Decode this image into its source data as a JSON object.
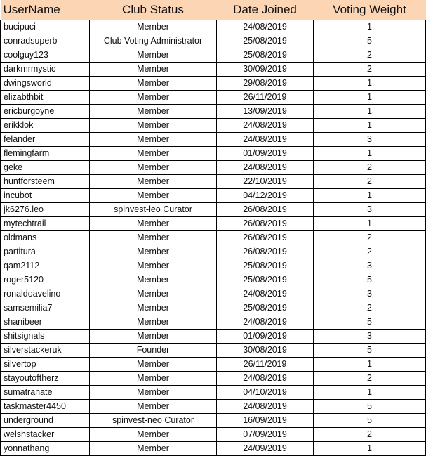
{
  "headers": [
    "UserName",
    "Club Status",
    "Date Joined",
    "Voting Weight"
  ],
  "colors": {
    "header_bg": "#FCD5B4"
  },
  "rows": [
    [
      "bucipuci",
      "Member",
      "24/08/2019",
      "1"
    ],
    [
      "conradsuperb",
      "Club Voting Administrator",
      "25/08/2019",
      "5"
    ],
    [
      "coolguy123",
      "Member",
      "25/08/2019",
      "2"
    ],
    [
      "darkmrmystic",
      "Member",
      "30/09/2019",
      "2"
    ],
    [
      "dwingsworld",
      "Member",
      "29/08/2019",
      "1"
    ],
    [
      "elizabthbit",
      "Member",
      "26/11/2019",
      "1"
    ],
    [
      "ericburgoyne",
      "Member",
      "13/09/2019",
      "1"
    ],
    [
      "erikklok",
      "Member",
      "24/08/2019",
      "1"
    ],
    [
      "felander",
      "Member",
      "24/08/2019",
      "3"
    ],
    [
      "flemingfarm",
      "Member",
      "01/09/2019",
      "1"
    ],
    [
      "geke",
      "Member",
      "24/08/2019",
      "2"
    ],
    [
      "huntforsteem",
      "Member",
      "22/10/2019",
      "2"
    ],
    [
      "incubot",
      "Member",
      "04/12/2019",
      "1"
    ],
    [
      "jk6276.leo",
      "spinvest-leo Curator",
      "26/08/2019",
      "3"
    ],
    [
      "mytechtrail",
      "Member",
      "26/08/2019",
      "1"
    ],
    [
      "oldmans",
      "Member",
      "26/08/2019",
      "2"
    ],
    [
      "partitura",
      "Member",
      "26/08/2019",
      "2"
    ],
    [
      "qam2112",
      "Member",
      "25/08/2019",
      "3"
    ],
    [
      "roger5120",
      "Member",
      "25/08/2019",
      "5"
    ],
    [
      "ronaldoavelino",
      "Member",
      "24/08/2019",
      "3"
    ],
    [
      "samsemilia7",
      "Member",
      "25/08/2019",
      "2"
    ],
    [
      "shanibeer",
      "Member",
      "24/08/2019",
      "5"
    ],
    [
      "shitsignals",
      "Member",
      "01/09/2019",
      "3"
    ],
    [
      "silverstackeruk",
      "Founder",
      "30/08/2019",
      "5"
    ],
    [
      "silvertop",
      "Member",
      "26/11/2019",
      "1"
    ],
    [
      "stayoutoftherz",
      "Member",
      "24/08/2019",
      "2"
    ],
    [
      "sumatranate",
      "Member",
      "04/10/2019",
      "1"
    ],
    [
      "taskmaster4450",
      "Member",
      "24/08/2019",
      "5"
    ],
    [
      "underground",
      "spinvest-neo Curator",
      "16/09/2019",
      "5"
    ],
    [
      "welshstacker",
      "Member",
      "07/09/2019",
      "2"
    ],
    [
      "yonnathang",
      "Member",
      "24/09/2019",
      "1"
    ]
  ]
}
